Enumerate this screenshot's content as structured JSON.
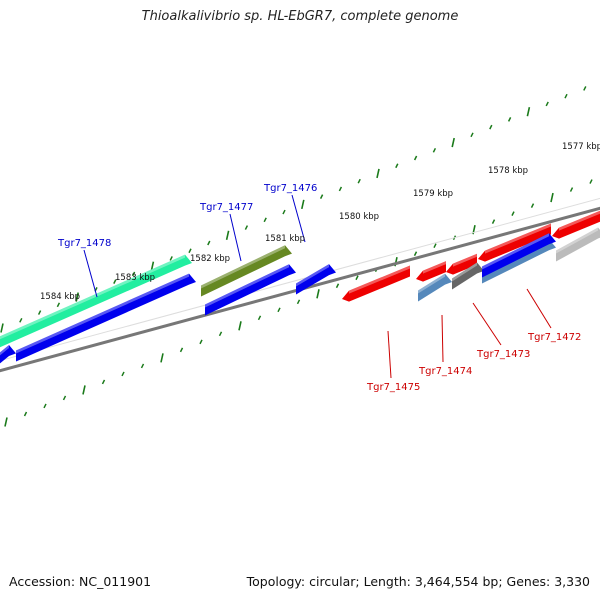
{
  "title": "Thioalkalivibrio sp. HL-EbGR7, complete genome",
  "accession": "Accession: NC_011901",
  "summary": "Topology: circular; Length: 3,464,554 bp; Genes: 3,330",
  "colors": {
    "forward_label": "#0000cc",
    "reverse_label": "#cc0000",
    "tick": "#1a7a1a",
    "backbone": "#777777",
    "cds_blue": "#0000ee",
    "cds_red": "#ee0000",
    "cds_teal": "#22eea0",
    "cds_olive": "#668822",
    "cds_steel": "#5588bb",
    "cds_grey": "#666666",
    "cds_light_grey": "#bbbbbb"
  },
  "scale_ticks": [
    {
      "label": "1584 kbp"
    },
    {
      "label": "1583 kbp"
    },
    {
      "label": "1582 kbp"
    },
    {
      "label": "1581 kbp"
    },
    {
      "label": "1580 kbp"
    },
    {
      "label": "1579 kbp"
    },
    {
      "label": "1578 kbp"
    },
    {
      "label": "1577 kbp"
    }
  ],
  "gene_labels": [
    {
      "name": "Tgr7_1478",
      "strand": "forward"
    },
    {
      "name": "Tgr7_1477",
      "strand": "forward"
    },
    {
      "name": "Tgr7_1476",
      "strand": "forward"
    },
    {
      "name": "Tgr7_1475",
      "strand": "reverse"
    },
    {
      "name": "Tgr7_1474",
      "strand": "reverse"
    },
    {
      "name": "Tgr7_1473",
      "strand": "reverse"
    },
    {
      "name": "Tgr7_1472",
      "strand": "reverse"
    }
  ]
}
